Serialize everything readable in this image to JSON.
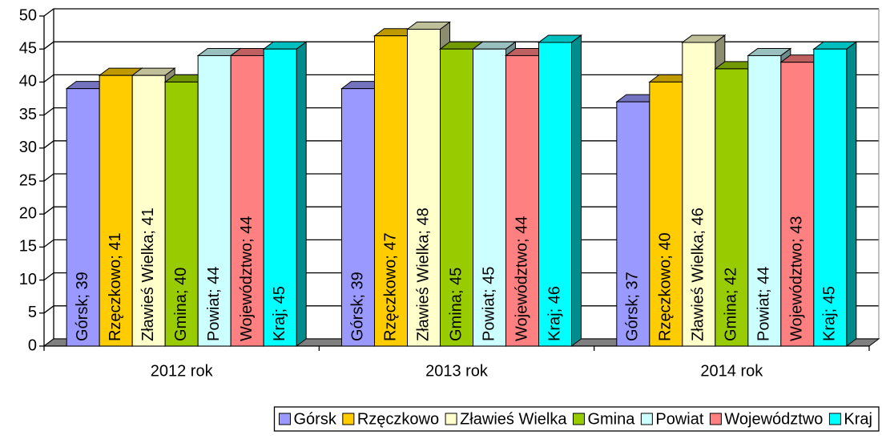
{
  "chart_data": {
    "type": "bar3d",
    "categories": [
      "2012 rok",
      "2013 rok",
      "2014 rok"
    ],
    "ylim": [
      0,
      50
    ],
    "yticks": [
      0,
      5,
      10,
      15,
      20,
      25,
      30,
      35,
      40,
      45,
      50
    ],
    "grid": true,
    "legend": "bottom",
    "series": [
      {
        "name": "Górsk",
        "color": "#9999ff",
        "values": [
          39,
          39,
          37
        ],
        "value_labels": [
          "Górsk; 39",
          "Górsk; 39",
          "Górsk; 37"
        ]
      },
      {
        "name": "Rzęczkowo",
        "color": "#ffcc00",
        "values": [
          41,
          47,
          40
        ],
        "value_labels": [
          "Rzęczkowo; 41",
          "Rzęczkowo; 47",
          "Rzęczkowo; 40"
        ]
      },
      {
        "name": "Zławieś Wielka",
        "color": "#ffffcc",
        "values": [
          41,
          48,
          46
        ],
        "value_labels": [
          "Zławieś Wielka; 41",
          "Zławieś Wielka; 48",
          "Zławieś Wielka; 46"
        ]
      },
      {
        "name": "Gmina",
        "color": "#99cc00",
        "values": [
          40,
          45,
          42
        ],
        "value_labels": [
          "Gmina; 40",
          "Gmina; 45",
          "Gmina; 42"
        ]
      },
      {
        "name": "Powiat",
        "color": "#ccffff",
        "values": [
          44,
          45,
          44
        ],
        "value_labels": [
          "Powiat; 44",
          "Powiat; 45",
          "Powiat; 44"
        ]
      },
      {
        "name": "Województwo",
        "color": "#ff8080",
        "values": [
          44,
          44,
          43
        ],
        "value_labels": [
          "Województwo; 44",
          "Województwo; 44",
          "Województwo; 43"
        ]
      },
      {
        "name": "Kraj",
        "color": "#00ffff",
        "values": [
          45,
          46,
          45
        ],
        "value_labels": [
          "Kraj; 45",
          "Kraj; 46",
          "Kraj; 45"
        ]
      }
    ]
  }
}
